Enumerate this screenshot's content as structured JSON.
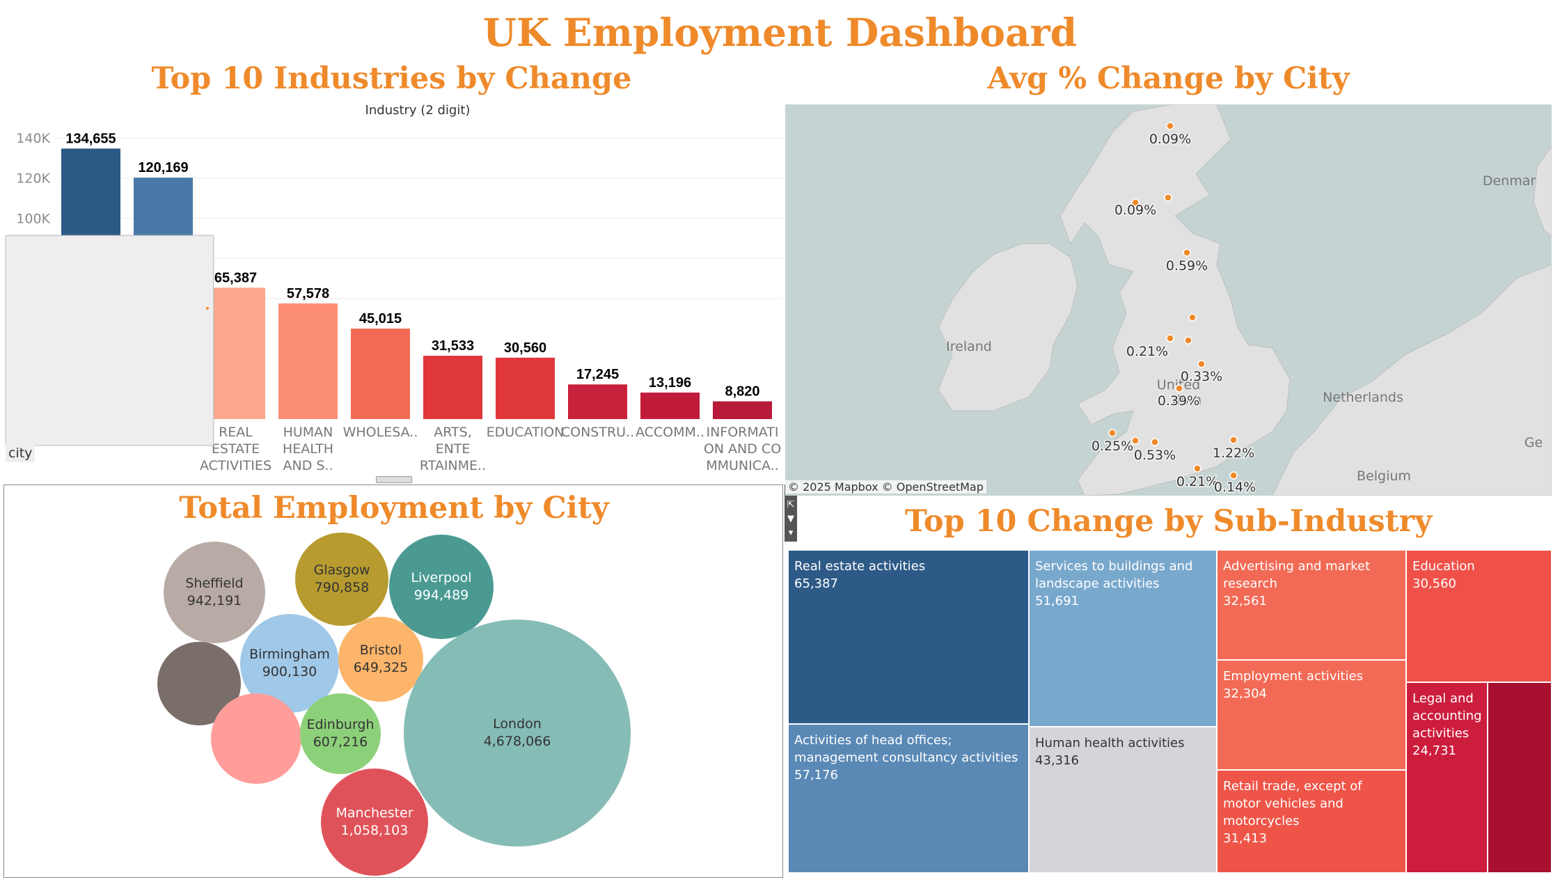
{
  "dashboard_title": "UK Employment Dashboard",
  "bar_section": {
    "title": "Top 10 Industries by Change",
    "header": "Industry (2 digit)",
    "tooltip_field": "city"
  },
  "map_section": {
    "title": "Avg % Change by City",
    "attribution": "© 2025 Mapbox © OpenStreetMap",
    "places": [
      "Ireland",
      "Netherlands",
      "Belgium",
      "Denmar",
      "Ge",
      "United",
      "dom"
    ],
    "labels": [
      "0.09%",
      "0.09%",
      "0.59%",
      "0.21%",
      "0.33%",
      "0.39%",
      "0.25%",
      "0.53%",
      "1.22%",
      "0.21%",
      "0.14%"
    ]
  },
  "bubble_section": {
    "title": "Total Employment by City",
    "cities": [
      {
        "name": "Sheffield",
        "value": "942,191",
        "color": "#b8aba6"
      },
      {
        "name": "Glasgow",
        "value": "790,858",
        "color": "#b79b2f"
      },
      {
        "name": "Liverpool",
        "value": "994,489",
        "color": "#4a9a92"
      },
      {
        "name": "Birmingham",
        "value": "900,130",
        "color": "#a0c8e8"
      },
      {
        "name": "Bristol",
        "value": "649,325",
        "color": "#fdb56b"
      },
      {
        "name": "",
        "value": "",
        "color": "#796e6a"
      },
      {
        "name": "",
        "value": "",
        "color": "#ff9d9a"
      },
      {
        "name": "Edinburgh",
        "value": "607,216",
        "color": "#8dd07a"
      },
      {
        "name": "London",
        "value": "4,678,066",
        "color": "#86bcb6"
      },
      {
        "name": "Manchester",
        "value": "1,058,103",
        "color": "#e05259"
      }
    ]
  },
  "treemap_section": {
    "title": "Top 10 Change by Sub-Industry",
    "cells": [
      {
        "name": "Real estate activities",
        "value": "65,387",
        "color": "#2e5a87"
      },
      {
        "name": "Activities of head offices; management consultancy activities",
        "value": "57,176",
        "color": "#5a89b6"
      },
      {
        "name": "Services to buildings and landscape activities",
        "value": "51,691",
        "color": "#79a8cd"
      },
      {
        "name": "Human health activities",
        "value": "43,316",
        "color": "#d4d5d9"
      },
      {
        "name": "Advertising and market research",
        "value": "32,561",
        "color": "#f26a55"
      },
      {
        "name": "Employment activities",
        "value": "32,304",
        "color": "#f26a55"
      },
      {
        "name": "Retail trade, except of motor vehicles and motorcycles",
        "value": "31,413",
        "color": "#ee5548"
      },
      {
        "name": "Education",
        "value": "30,560",
        "color": "#ef5149"
      },
      {
        "name": "Legal and accounting activities",
        "value": "24,731",
        "color": "#cc1d3d"
      },
      {
        "name": "",
        "value": "",
        "color": "#a8102f"
      }
    ]
  },
  "chart_data": {
    "type": "bar",
    "title": "Top 10 Industries by Change",
    "xlabel": "Industry (2 digit)",
    "ylabel": "",
    "ylim": [
      0,
      145000
    ],
    "yticks": [
      "100K",
      "120K",
      "140K"
    ],
    "categories": [
      "",
      "",
      "REAL ESTATE ACTIVITIES",
      "HUMAN HEALTH AND S..",
      "WHOLESA..",
      "ARTS, ENTE RTAINME..",
      "EDUCATION",
      "CONSTRU..",
      "ACCOMM..",
      "INFORMATI ON AND CO MMUNICA.."
    ],
    "values": [
      134655,
      120169,
      65387,
      57578,
      45015,
      31533,
      30560,
      17245,
      13196,
      8820
    ],
    "value_labels": [
      "134,655",
      "120,169",
      "65,387",
      "57,578",
      "45,015",
      "31,533",
      "30,560",
      "17,245",
      "13,196",
      "8,820"
    ],
    "colors": [
      "#2c5985",
      "#4a78a6",
      "#fca68e",
      "#fb8d74",
      "#f26a55",
      "#e0373c",
      "#e0373c",
      "#c8213b",
      "#c01c3a",
      "#b81a39"
    ]
  }
}
